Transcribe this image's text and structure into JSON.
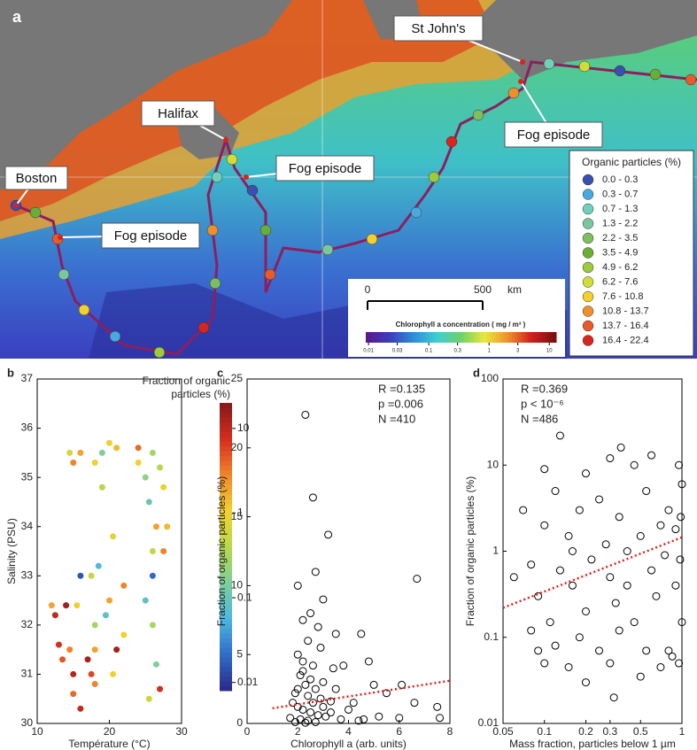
{
  "map": {
    "panel_label": "a",
    "labels": [
      "Boston",
      "Halifax",
      "St John's",
      "Fog episode",
      "Fog episode",
      "Fog episode"
    ],
    "legend_title": "Organic particles (%)",
    "legend": [
      {
        "label": "0.0 - 0.3",
        "color": "#3a4fb0"
      },
      {
        "label": "0.3 - 0.7",
        "color": "#4aa8e0"
      },
      {
        "label": "0.7 - 1.3",
        "color": "#6fcfb8"
      },
      {
        "label": "1.3 - 2.2",
        "color": "#7cc79a"
      },
      {
        "label": "2.2 - 3.5",
        "color": "#7dbf5e"
      },
      {
        "label": "3.5 - 4.9",
        "color": "#6aae3a"
      },
      {
        "label": "4.9 - 6.2",
        "color": "#9ccb3c"
      },
      {
        "label": "6.2 - 7.6",
        "color": "#cfdc3a"
      },
      {
        "label": "7.6 - 10.8",
        "color": "#f3d02a"
      },
      {
        "label": "10.8 - 13.7",
        "color": "#f0902c"
      },
      {
        "label": "13.7 - 16.4",
        "color": "#e85a2a"
      },
      {
        "label": "16.4 - 22.4",
        "color": "#d7261e"
      }
    ],
    "scale_bar": {
      "ticks": [
        0,
        500
      ],
      "unit": "km"
    },
    "colorbar_title": "Chlorophyll a concentration ( mg / m³ )",
    "colorbar_ticks": [
      0.01,
      0.03,
      0.1,
      0.3,
      1,
      3,
      10
    ],
    "colorbar_lim": [
      0.009,
      13
    ],
    "colorbar_colors": [
      "#5a1a8a",
      "#3b3fbf",
      "#2f8fd8",
      "#3fcfd0",
      "#6fd06a",
      "#e8e83a",
      "#f0902c",
      "#d0201a",
      "#7a1010"
    ]
  },
  "chart_data": [
    {
      "type": "scatter",
      "panel_label": "b",
      "x_label": "Température (°C)",
      "y_label": "Salinity (PSU)",
      "xlim": [
        10,
        30
      ],
      "xticks": [
        10,
        20,
        30
      ],
      "ylim": [
        30,
        37
      ],
      "yticks": [
        30,
        31,
        32,
        33,
        34,
        35,
        36,
        37
      ],
      "colorbar_title": [
        "Fraction of organic",
        "particles (%)"
      ],
      "clim": [
        0.008,
        20
      ],
      "cticks": [
        0.01,
        0.1,
        1,
        10
      ],
      "clog": true,
      "colormap": [
        "#2c2c8c",
        "#2f6fc9",
        "#4fb8e0",
        "#7ecf9a",
        "#b8d84a",
        "#f2d12e",
        "#f08a2c",
        "#d7301f",
        "#8c1a1a"
      ],
      "x": [
        12,
        12.5,
        13,
        13.5,
        14,
        14.5,
        15,
        15.5,
        15,
        16,
        17,
        17.5,
        18,
        18,
        17.5,
        18,
        18,
        16,
        15,
        14.5,
        19,
        19,
        20,
        21,
        20.5,
        20,
        21,
        20.5,
        22,
        24,
        25,
        25.5,
        26,
        26,
        26.5,
        27,
        27.5,
        28,
        26,
        25,
        26.5,
        27,
        25.5,
        26,
        27.5,
        18.5,
        16,
        19.5,
        22,
        24
      ],
      "values": [
        32.4,
        32.2,
        31.6,
        31.3,
        32.4,
        31.5,
        31.0,
        32.4,
        30.6,
        30.3,
        31.3,
        31.0,
        31.5,
        30.8,
        33.0,
        32.0,
        35.3,
        35.5,
        35.3,
        35.5,
        35.5,
        34.8,
        35.7,
        35.6,
        33.8,
        32.5,
        31.5,
        31.0,
        32.8,
        35.3,
        35.0,
        34.5,
        35.5,
        33.5,
        34.0,
        35.2,
        34.8,
        34.0,
        33.0,
        32.5,
        31.2,
        30.7,
        30.5,
        32.0,
        33.5,
        33.2,
        33.0,
        32.2,
        31.8,
        35.6
      ],
      "c": [
        2,
        10,
        8,
        5,
        15,
        3,
        12,
        1,
        4,
        10,
        14,
        6,
        2,
        3,
        0.5,
        0.3,
        1,
        2,
        3,
        0.7,
        0.15,
        0.4,
        1,
        1.5,
        0.8,
        2,
        14,
        1,
        3,
        1,
        0.2,
        0.1,
        0.3,
        0.5,
        2,
        0.4,
        1,
        1.5,
        0.02,
        0.08,
        0.15,
        8,
        0.6,
        0.3,
        3,
        0.06,
        0.015,
        0.08,
        1,
        4
      ]
    },
    {
      "type": "scatter",
      "panel_label": "c",
      "x_label": "Chlorophyll a (arb. units)",
      "y_label": "Fraction of organic particles (%)",
      "xlim": [
        0,
        8
      ],
      "xticks": [
        0,
        2,
        4,
        6,
        8
      ],
      "ylim": [
        0,
        25
      ],
      "yticks": [
        0,
        5,
        10,
        15,
        20,
        25
      ],
      "annotations": [
        "R =0.135",
        "p =0.006",
        "N =410"
      ],
      "series": [
        {
          "style": "markers",
          "color": "#000000",
          "x": [
            2.3,
            2.6,
            3.2,
            6.7,
            2.0,
            2.7,
            3.0,
            2.5,
            2.2,
            2.8,
            3.5,
            4.5,
            2.4,
            2.9,
            2.0,
            2.2,
            2.6,
            3.4,
            3.8,
            4.8,
            2.1,
            2.5,
            3.0,
            2.3,
            2.7,
            1.9,
            2.4,
            2.9,
            3.5,
            4.2,
            5.0,
            5.5,
            6.1,
            6.6,
            7.5,
            7.6,
            1.8,
            2.0,
            2.2,
            2.5,
            2.8,
            3.1,
            1.7,
            2.1,
            2.4,
            2.7,
            3.3,
            3.7,
            4.0,
            4.6,
            5.2,
            6.0,
            1.9,
            2.3,
            2.6,
            3.0,
            2.0,
            2.2,
            3.3,
            4.4
          ],
          "values": [
            22.4,
            16.4,
            13.7,
            10.5,
            10,
            11,
            9,
            8,
            7.5,
            7,
            6.5,
            6.5,
            6,
            5.5,
            5,
            4.5,
            4.2,
            4,
            4.2,
            4.5,
            3.5,
            3.2,
            3,
            2.8,
            2.5,
            2.2,
            2,
            1.8,
            2.5,
            1.5,
            2.8,
            2.2,
            2.8,
            1.5,
            1.2,
            0.4,
            1.5,
            1.2,
            1.0,
            0.8,
            0.6,
            0.5,
            0.4,
            0.3,
            0.2,
            0.1,
            0.8,
            0.3,
            1.0,
            0.3,
            0.5,
            0.4,
            0.1,
            0.05,
            1.5,
            1.2,
            2.5,
            3.8,
            1.6,
            0.2
          ]
        },
        {
          "style": "dotted",
          "color": "#e0201a",
          "x": [
            1,
            8
          ],
          "values": [
            1.1,
            3.1
          ]
        }
      ]
    },
    {
      "type": "scatter",
      "panel_label": "d",
      "x_label": "Mass fraction, particles below 1 µm",
      "y_label": "Fraction of organic particles (%)",
      "xlim": [
        0.05,
        1
      ],
      "xticks": [
        0.05,
        0.1,
        0.2,
        0.3,
        0.5,
        1
      ],
      "xlog": true,
      "ylim": [
        0.01,
        100
      ],
      "yticks": [
        0.01,
        0.1,
        1,
        10,
        100
      ],
      "ylog": true,
      "annotations": [
        "R =0.369",
        "p < 10⁻⁶",
        "N =486"
      ],
      "series": [
        {
          "style": "markers",
          "color": "#000000",
          "x": [
            0.13,
            0.36,
            0.3,
            0.45,
            0.95,
            0.6,
            0.1,
            0.2,
            0.07,
            0.1,
            0.12,
            0.15,
            0.18,
            0.25,
            0.28,
            0.35,
            0.4,
            0.5,
            0.55,
            0.7,
            0.8,
            0.9,
            0.98,
            1,
            0.06,
            0.08,
            0.09,
            0.11,
            0.13,
            0.16,
            0.2,
            0.22,
            0.3,
            0.33,
            0.4,
            0.45,
            0.6,
            0.65,
            0.75,
            0.85,
            0.9,
            0.97,
            1,
            0.09,
            0.1,
            0.12,
            0.15,
            0.18,
            0.2,
            0.25,
            0.3,
            0.35,
            0.5,
            0.55,
            0.7,
            0.8,
            0.95,
            0.32,
            0.08,
            0.16
          ],
          "values": [
            22,
            16,
            12,
            10,
            10,
            13,
            9,
            8,
            3,
            2,
            5,
            1.5,
            3,
            4,
            1.2,
            2.5,
            1,
            1.5,
            5,
            2,
            3,
            1.8,
            2.5,
            6,
            0.5,
            0.7,
            0.3,
            0.15,
            0.6,
            0.4,
            0.2,
            0.8,
            0.5,
            0.25,
            0.4,
            0.15,
            0.6,
            0.3,
            0.9,
            0.06,
            0.4,
            0.8,
            0.15,
            0.07,
            0.05,
            0.08,
            0.045,
            0.1,
            0.03,
            0.07,
            0.05,
            0.12,
            0.035,
            0.07,
            0.045,
            0.07,
            0.05,
            0.02,
            0.12,
            1.0
          ]
        },
        {
          "style": "dotted",
          "color": "#e0201a",
          "x": [
            0.05,
            1
          ],
          "values": [
            0.22,
            1.45
          ]
        }
      ]
    }
  ]
}
